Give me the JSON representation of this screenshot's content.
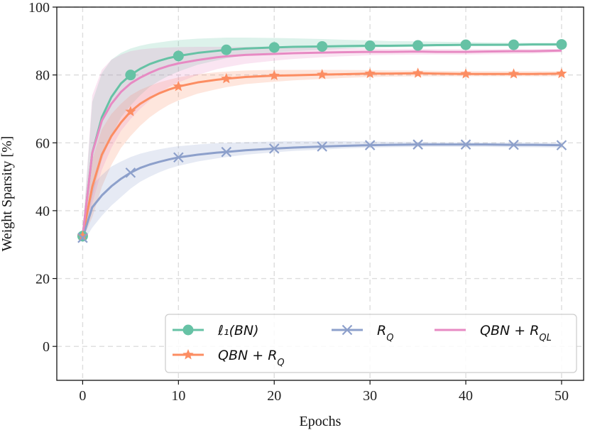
{
  "chart_data": {
    "type": "line",
    "title": "",
    "xlabel": "Epochs",
    "ylabel": "Weight Sparsity [%]",
    "xlim": [
      -2.7,
      52.3
    ],
    "ylim": [
      -10,
      100
    ],
    "xticks": [
      0,
      10,
      20,
      30,
      40,
      50
    ],
    "yticks": [
      0,
      20,
      40,
      60,
      80,
      100
    ],
    "grid": true,
    "legend_position": "lower-right",
    "x": [
      0,
      1,
      2,
      3,
      4,
      5,
      6,
      7,
      8,
      9,
      10,
      12,
      14,
      15,
      17,
      20,
      22,
      25,
      27,
      30,
      32,
      35,
      37,
      40,
      42,
      45,
      47,
      50
    ],
    "marker_x": [
      0,
      5,
      10,
      15,
      20,
      25,
      30,
      35,
      40,
      45,
      50
    ],
    "series": [
      {
        "name": "ℓ₁(BN)",
        "color": "#66c2a5",
        "marker": "circle",
        "values": [
          32.5,
          57,
          67.5,
          73.5,
          77.5,
          80,
          81.8,
          83.2,
          84.2,
          85,
          85.6,
          86.5,
          87.1,
          87.4,
          87.8,
          88.1,
          88.3,
          88.4,
          88.5,
          88.6,
          88.6,
          88.7,
          88.8,
          88.9,
          88.9,
          88.9,
          89,
          89
        ],
        "upper": [
          33.5,
          72,
          80.5,
          84.5,
          86.5,
          87.8,
          88.6,
          89.2,
          89.6,
          90,
          90.3,
          90.7,
          90.9,
          91,
          91,
          90.9,
          90.8,
          90.6,
          90.4,
          90.2,
          90,
          89.9,
          89.8,
          89.7,
          89.6,
          89.5,
          89.5,
          89.5
        ],
        "lower": [
          31.5,
          44,
          55,
          62,
          67.5,
          71,
          74,
          76.5,
          78.3,
          79.8,
          81,
          83,
          84.3,
          84.9,
          85.8,
          86.6,
          87,
          87.4,
          87.7,
          88,
          88.1,
          88.3,
          88.4,
          88.5,
          88.5,
          88.6,
          88.6,
          88.6
        ]
      },
      {
        "name": "QBN + R_Q",
        "color": "#fc8d62",
        "marker": "star",
        "values": [
          32.5,
          47,
          56.5,
          62,
          66,
          69.2,
          71.5,
          73.2,
          74.6,
          75.7,
          76.6,
          77.8,
          78.6,
          78.9,
          79.4,
          79.8,
          79.9,
          80.1,
          80.2,
          80.4,
          80.4,
          80.5,
          80.4,
          80.3,
          80.3,
          80.3,
          80.3,
          80.4
        ],
        "upper": [
          33.5,
          55,
          64,
          68.5,
          71.5,
          74,
          75.6,
          76.8,
          77.8,
          78.6,
          79.3,
          80.2,
          80.8,
          81,
          81.3,
          81.5,
          81.5,
          81.5,
          81.5,
          81.4,
          81.3,
          81.3,
          81.2,
          81.1,
          81.1,
          81.1,
          81.1,
          81.1
        ],
        "lower": [
          31.5,
          38,
          47,
          53.5,
          58.5,
          62,
          65,
          67.5,
          69.5,
          71.2,
          72.5,
          74.5,
          75.8,
          76.4,
          77.3,
          78,
          78.4,
          78.8,
          79.1,
          79.4,
          79.5,
          79.6,
          79.6,
          79.6,
          79.6,
          79.6,
          79.6,
          79.6
        ]
      },
      {
        "name": "R_Q",
        "color": "#8da0cb",
        "marker": "x",
        "values": [
          32,
          41,
          44.5,
          47.2,
          49.4,
          51.2,
          52.6,
          53.6,
          54.4,
          55.1,
          55.7,
          56.5,
          57.1,
          57.3,
          57.8,
          58.3,
          58.6,
          58.9,
          59.1,
          59.3,
          59.4,
          59.5,
          59.5,
          59.5,
          59.5,
          59.4,
          59.4,
          59.3
        ],
        "upper": [
          33.5,
          47.5,
          50.5,
          53,
          54.5,
          55.8,
          56.8,
          57.5,
          58.1,
          58.6,
          59,
          59.5,
          59.9,
          60,
          60.2,
          60.4,
          60.5,
          60.5,
          60.5,
          60.4,
          60.3,
          60.3,
          60.2,
          60.2,
          60.1,
          60.1,
          60.1,
          60
        ],
        "lower": [
          30.5,
          35,
          38.5,
          41.5,
          44,
          46.5,
          48.5,
          50,
          51.3,
          52.4,
          53.2,
          54.5,
          55.4,
          55.8,
          56.5,
          57.2,
          57.6,
          58,
          58.3,
          58.6,
          58.7,
          58.8,
          58.8,
          58.8,
          58.8,
          58.7,
          58.7,
          58.6
        ]
      },
      {
        "name": "QBN + R_QL",
        "color": "#e78ac3",
        "marker": "none",
        "values": [
          32.5,
          57,
          66.5,
          71.5,
          75,
          77.5,
          79.2,
          80.6,
          81.8,
          82.7,
          83.4,
          84.4,
          85.2,
          85.5,
          85.9,
          86.2,
          86.4,
          86.6,
          86.7,
          86.8,
          86.8,
          86.9,
          86.8,
          86.8,
          86.9,
          87,
          87,
          87.2
        ],
        "upper": [
          33.5,
          74,
          81.5,
          84.5,
          86,
          87,
          87.5,
          87.8,
          88,
          88.1,
          88.2,
          88.3,
          88.3,
          88.3,
          88.3,
          88.2,
          88.1,
          88,
          87.9,
          87.8,
          87.7,
          87.7,
          87.6,
          87.6,
          87.6,
          87.6,
          87.6,
          87.7
        ],
        "lower": [
          31.5,
          42,
          52,
          58.5,
          63.5,
          67,
          70,
          72.5,
          74.6,
          76.4,
          77.8,
          80,
          81.7,
          82.3,
          83.3,
          84.2,
          84.7,
          85.2,
          85.5,
          85.8,
          85.9,
          86,
          86,
          86,
          86.1,
          86.2,
          86.3,
          86.6
        ]
      }
    ],
    "legend": [
      {
        "key": 0,
        "label": "ℓ₁(BN)"
      },
      {
        "key": 2,
        "label": "R_Q"
      },
      {
        "key": 3,
        "label": "QBN + R_QL"
      },
      {
        "key": 1,
        "label": "QBN + R_Q"
      }
    ]
  }
}
